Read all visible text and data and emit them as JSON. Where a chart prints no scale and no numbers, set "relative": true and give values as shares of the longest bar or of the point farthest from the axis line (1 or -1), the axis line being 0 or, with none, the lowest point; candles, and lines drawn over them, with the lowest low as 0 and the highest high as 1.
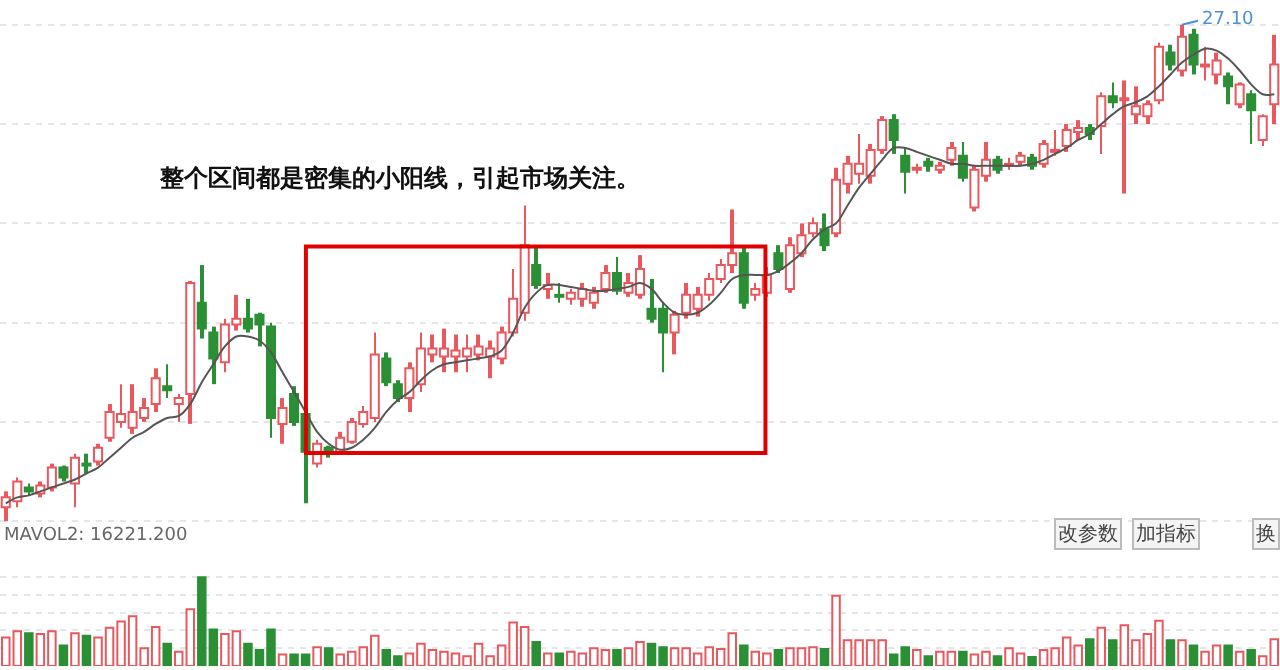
{
  "chart_data": [
    {
      "type": "candlestick",
      "relative": true,
      "grid": "y",
      "categories": [
        null,
        null,
        null,
        null,
        null,
        null,
        null,
        null,
        null,
        null,
        null,
        null,
        null,
        null,
        null,
        null,
        null,
        null,
        null,
        null,
        null,
        null,
        null,
        null,
        null,
        null,
        null,
        null,
        null,
        null,
        null,
        null,
        null,
        null,
        null,
        null,
        null,
        null,
        null,
        null,
        null,
        null,
        null,
        null,
        null,
        null,
        null,
        null,
        null,
        null,
        null,
        null,
        null,
        null,
        null,
        null,
        null,
        null,
        null,
        null,
        null,
        null,
        null,
        null,
        null,
        null,
        null,
        null,
        null,
        null,
        null,
        null,
        null,
        null,
        null,
        null,
        null,
        null,
        null,
        null,
        null,
        null,
        null,
        null,
        null,
        null,
        null,
        null,
        null,
        null,
        null,
        null,
        null,
        null,
        null,
        null,
        null,
        null,
        null,
        null,
        null,
        null,
        null,
        null,
        null,
        null,
        null,
        null,
        null,
        null,
        null
      ],
      "colors": [
        "#e8585e",
        "#e8585e",
        "#2a8f35",
        "#e8585e",
        "#e8585e",
        "#2a8f35",
        "#e8585e",
        "#2a8f35",
        "#e8585e",
        "#e8585e",
        "#e8585e",
        "#e8585e",
        "#e8585e",
        "#e8585e",
        "#2a8f35",
        "#e8585e",
        "#e8585e",
        "#2a8f35",
        "#2a8f35",
        "#e8585e",
        "#e8585e",
        "#2a8f35",
        "#2a8f35",
        "#2a8f35",
        "#e8585e",
        "#2a8f35",
        "#2a8f35",
        "#e8585e",
        "#2a8f35",
        "#e8585e",
        "#e8585e",
        "#e8585e",
        "#e8585e",
        "#2a8f35",
        "#2a8f35",
        "#e8585e",
        "#e8585e",
        "#e8585e",
        "#e8585e",
        "#e8585e",
        "#e8585e",
        "#e8585e",
        "#e8585e",
        "#e8585e",
        "#e8585e",
        "#e8585e",
        "#2a8f35",
        "#e8585e",
        "#2a8f35",
        "#e8585e",
        "#e8585e",
        "#e8585e",
        "#e8585e",
        "#2a8f35",
        "#e8585e",
        "#e8585e",
        "#2a8f35",
        "#2a8f35",
        "#e8585e",
        "#e8585e",
        "#e8585e",
        "#e8585e",
        "#e8585e",
        "#e8585e",
        "#2a8f35",
        "#e8585e",
        "#e8585e",
        "#2a8f35",
        "#e8585e",
        "#e8585e",
        "#e8585e",
        "#2a8f35",
        "#e8585e",
        "#e8585e",
        "#e8585e",
        "#e8585e",
        "#e8585e",
        "#2a8f35",
        "#2a8f35",
        "#e8585e",
        "#2a8f35",
        "#e8585e",
        "#e8585e",
        "#2a8f35",
        "#e8585e",
        "#e8585e",
        "#2a8f35",
        "#e8585e",
        "#e8585e",
        "#2a8f35",
        "#e8585e",
        "#e8585e",
        "#e8585e",
        "#e8585e",
        "#2a8f35",
        "#e8585e",
        "#2a8f35",
        "#e8585e",
        "#e8585e",
        "#e8585e",
        "#e8585e",
        "#2a8f35",
        "#e8585e",
        "#2a8f35",
        "#e8585e",
        "#e8585e",
        "#2a8f35",
        "#e8585e",
        "#2a8f35",
        "#e8585e",
        "#e8585e"
      ],
      "ohlc": [
        [
          0.028,
          0.06,
          0,
          0.048
        ],
        [
          0.04,
          0.088,
          0.028,
          0.08
        ],
        [
          0.068,
          0.076,
          0.052,
          0.06
        ],
        [
          0.056,
          0.08,
          0.048,
          0.072
        ],
        [
          0.068,
          0.116,
          0.06,
          0.108
        ],
        [
          0.108,
          0.112,
          0.08,
          0.088
        ],
        [
          0.076,
          0.136,
          0.028,
          0.128
        ],
        [
          0.116,
          0.136,
          0.096,
          0.112
        ],
        [
          0.12,
          0.156,
          0.112,
          0.148
        ],
        [
          0.168,
          0.236,
          0.16,
          0.22
        ],
        [
          0.2,
          0.276,
          0.188,
          0.216
        ],
        [
          0.188,
          0.276,
          0.176,
          0.22
        ],
        [
          0.208,
          0.248,
          0.2,
          0.228
        ],
        [
          0.236,
          0.308,
          0.22,
          0.288
        ],
        [
          0.272,
          0.316,
          0.248,
          0.264
        ],
        [
          0.236,
          0.256,
          0.2,
          0.248
        ],
        [
          0.256,
          0.484,
          0.196,
          0.48
        ],
        [
          0.44,
          0.516,
          0.368,
          0.388
        ],
        [
          0.38,
          0.392,
          0.276,
          0.328
        ],
        [
          0.32,
          0.408,
          0.3,
          0.396
        ],
        [
          0.396,
          0.456,
          0.384,
          0.408
        ],
        [
          0.408,
          0.448,
          0.38,
          0.388
        ],
        [
          0.416,
          0.42,
          0.352,
          0.396
        ],
        [
          0.392,
          0.4,
          0.168,
          0.208
        ],
        [
          0.196,
          0.248,
          0.156,
          0.228
        ],
        [
          0.256,
          0.272,
          0.192,
          0.2
        ],
        [
          0.216,
          0.228,
          0.036,
          0.14
        ],
        [
          0.116,
          0.164,
          0.108,
          0.156
        ],
        [
          0.148,
          0.152,
          0.128,
          0.136
        ],
        [
          0.14,
          0.18,
          0.136,
          0.168
        ],
        [
          0.16,
          0.208,
          0.156,
          0.2
        ],
        [
          0.196,
          0.232,
          0.188,
          0.22
        ],
        [
          0.208,
          0.38,
          0.2,
          0.336
        ],
        [
          0.328,
          0.34,
          0.272,
          0.28
        ],
        [
          0.276,
          0.284,
          0.24,
          0.248
        ],
        [
          0.248,
          0.32,
          0.22,
          0.308
        ],
        [
          0.276,
          0.38,
          0.26,
          0.348
        ],
        [
          0.336,
          0.376,
          0.32,
          0.348
        ],
        [
          0.332,
          0.388,
          0.3,
          0.348
        ],
        [
          0.332,
          0.376,
          0.3,
          0.344
        ],
        [
          0.332,
          0.376,
          0.3,
          0.348
        ],
        [
          0.336,
          0.376,
          0.324,
          0.352
        ],
        [
          0.332,
          0.364,
          0.288,
          0.348
        ],
        [
          0.328,
          0.392,
          0.316,
          0.38
        ],
        [
          0.38,
          0.508,
          0.372,
          0.448
        ],
        [
          0.42,
          0.636,
          0.404,
          0.556
        ],
        [
          0.516,
          0.552,
          0.468,
          0.476
        ],
        [
          0.468,
          0.5,
          0.448,
          0.476
        ],
        [
          0.456,
          0.48,
          0.44,
          0.452
        ],
        [
          0.448,
          0.468,
          0.436,
          0.46
        ],
        [
          0.448,
          0.48,
          0.432,
          0.468
        ],
        [
          0.44,
          0.472,
          0.428,
          0.46
        ],
        [
          0.468,
          0.516,
          0.46,
          0.5
        ],
        [
          0.5,
          0.532,
          0.456,
          0.464
        ],
        [
          0.46,
          0.5,
          0.452,
          0.48
        ],
        [
          0.456,
          0.536,
          0.448,
          0.508
        ],
        [
          0.428,
          0.488,
          0.4,
          0.408
        ],
        [
          0.428,
          0.44,
          0.3,
          0.38
        ],
        [
          0.38,
          0.424,
          0.336,
          0.416
        ],
        [
          0.42,
          0.48,
          0.408,
          0.456
        ],
        [
          0.428,
          0.472,
          0.412,
          0.456
        ],
        [
          0.456,
          0.5,
          0.444,
          0.488
        ],
        [
          0.488,
          0.528,
          0.48,
          0.516
        ],
        [
          0.516,
          0.628,
          0.5,
          0.54
        ],
        [
          0.54,
          0.556,
          0.428,
          0.44
        ],
        [
          0.456,
          0.48,
          0.444,
          0.468
        ],
        [
          0.46,
          0.512,
          0.452,
          0.496
        ],
        [
          0.54,
          0.556,
          0.5,
          0.508
        ],
        [
          0.468,
          0.572,
          0.46,
          0.556
        ],
        [
          0.54,
          0.6,
          0.532,
          0.576
        ],
        [
          0.58,
          0.612,
          0.572,
          0.6
        ],
        [
          0.588,
          0.62,
          0.544,
          0.556
        ],
        [
          0.58,
          0.712,
          0.572,
          0.688
        ],
        [
          0.68,
          0.736,
          0.66,
          0.72
        ],
        [
          0.7,
          0.78,
          0.68,
          0.72
        ],
        [
          0.696,
          0.76,
          0.68,
          0.748
        ],
        [
          0.748,
          0.816,
          0.74,
          0.808
        ],
        [
          0.808,
          0.82,
          0.74,
          0.768
        ],
        [
          0.736,
          0.752,
          0.66,
          0.704
        ],
        [
          0.708,
          0.72,
          0.7,
          0.712
        ],
        [
          0.724,
          0.732,
          0.704,
          0.716
        ],
        [
          0.708,
          0.724,
          0.7,
          0.716
        ],
        [
          0.728,
          0.764,
          0.716,
          0.752
        ],
        [
          0.736,
          0.764,
          0.684,
          0.692
        ],
        [
          0.632,
          0.716,
          0.624,
          0.708
        ],
        [
          0.696,
          0.764,
          0.684,
          0.728
        ],
        [
          0.728,
          0.736,
          0.7,
          0.708
        ],
        [
          0.716,
          0.732,
          0.708,
          0.72
        ],
        [
          0.724,
          0.744,
          0.716,
          0.736
        ],
        [
          0.732,
          0.74,
          0.708,
          0.716
        ],
        [
          0.72,
          0.768,
          0.712,
          0.76
        ],
        [
          0.744,
          0.788,
          0.736,
          0.748
        ],
        [
          0.756,
          0.8,
          0.744,
          0.788
        ],
        [
          0.784,
          0.808,
          0.768,
          0.792
        ],
        [
          0.792,
          0.8,
          0.768,
          0.78
        ],
        [
          0.796,
          0.864,
          0.74,
          0.856
        ],
        [
          0.856,
          0.884,
          0.832,
          0.844
        ],
        [
          0.848,
          0.888,
          0.66,
          0.852
        ],
        [
          0.82,
          0.876,
          0.8,
          0.836
        ],
        [
          0.816,
          0.848,
          0.8,
          0.84
        ],
        [
          0.848,
          0.964,
          0.84,
          0.956
        ],
        [
          0.944,
          0.96,
          0.908,
          0.92
        ],
        [
          0.908,
          1,
          0.896,
          0.976
        ],
        [
          0.98,
          0.992,
          0.9,
          0.92
        ],
        [
          0.916,
          0.956,
          0.888,
          0.92
        ],
        [
          0.9,
          0.944,
          0.88,
          0.928
        ],
        [
          0.896,
          0.904,
          0.84,
          0.876
        ],
        [
          0.84,
          0.884,
          0.832,
          0.88
        ],
        [
          0.86,
          0.868,
          0.76,
          0.828
        ],
        [
          0.768,
          0.82,
          0.756,
          0.816
        ],
        [
          0.84,
          0.98,
          0.8,
          0.92
        ]
      ],
      "series": [
        {
          "type": "line",
          "color": "#555555",
          "values": [
            0.036,
            0.048,
            0.052,
            0.06,
            0.068,
            0.076,
            0.084,
            0.096,
            0.108,
            0.128,
            0.148,
            0.168,
            0.18,
            0.196,
            0.208,
            0.212,
            0.236,
            0.28,
            0.316,
            0.352,
            0.372,
            0.372,
            0.364,
            0.34,
            0.3,
            0.26,
            0.22,
            0.18,
            0.156,
            0.144,
            0.148,
            0.164,
            0.188,
            0.22,
            0.244,
            0.26,
            0.284,
            0.304,
            0.316,
            0.32,
            0.324,
            0.328,
            0.332,
            0.344,
            0.38,
            0.43,
            0.46,
            0.476,
            0.476,
            0.472,
            0.468,
            0.464,
            0.464,
            0.468,
            0.472,
            0.48,
            0.468,
            0.44,
            0.42,
            0.416,
            0.42,
            0.436,
            0.46,
            0.488,
            0.496,
            0.496,
            0.496,
            0.504,
            0.52,
            0.54,
            0.568,
            0.588,
            0.6,
            0.636,
            0.672,
            0.7,
            0.728,
            0.752,
            0.752,
            0.744,
            0.736,
            0.728,
            0.72,
            0.72,
            0.716,
            0.716,
            0.716,
            0.716,
            0.716,
            0.72,
            0.728,
            0.74,
            0.752,
            0.768,
            0.78,
            0.8,
            0.82,
            0.836,
            0.844,
            0.856,
            0.876,
            0.9,
            0.924,
            0.94,
            0.952,
            0.948,
            0.932,
            0.908,
            0.88,
            0.86,
            0.86
          ]
        }
      ],
      "annotations": [
        "整个区间都是密集的小阳线，引起市场关注。",
        "27.10"
      ]
    },
    {
      "type": "bar",
      "relative": true,
      "grid": "y",
      "categories": [
        null,
        null,
        null,
        null,
        null,
        null,
        null,
        null,
        null,
        null,
        null,
        null,
        null,
        null,
        null,
        null,
        null,
        null,
        null,
        null,
        null,
        null,
        null,
        null,
        null,
        null,
        null,
        null,
        null,
        null,
        null,
        null,
        null,
        null,
        null,
        null,
        null,
        null,
        null,
        null,
        null,
        null,
        null,
        null,
        null,
        null,
        null,
        null,
        null,
        null,
        null,
        null,
        null,
        null,
        null,
        null,
        null,
        null,
        null,
        null,
        null,
        null,
        null,
        null,
        null,
        null,
        null,
        null,
        null,
        null,
        null,
        null,
        null,
        null,
        null,
        null,
        null,
        null,
        null,
        null,
        null,
        null,
        null,
        null,
        null,
        null,
        null,
        null,
        null,
        null,
        null,
        null,
        null,
        null,
        null,
        null,
        null,
        null,
        null,
        null,
        null,
        null,
        null,
        null,
        null,
        null,
        null,
        null,
        null,
        null,
        null
      ],
      "values": [
        0.32,
        0.39,
        0.37,
        0.36,
        0.39,
        0.23,
        0.37,
        0.34,
        0.32,
        0.43,
        0.5,
        0.56,
        0.2,
        0.44,
        0.25,
        0.16,
        0.64,
        1,
        0.41,
        0.36,
        0.39,
        0.25,
        0.18,
        0.41,
        0.13,
        0.13,
        0.13,
        0.21,
        0.2,
        0.13,
        0.16,
        0.21,
        0.34,
        0.18,
        0.11,
        0.14,
        0.25,
        0.18,
        0.16,
        0.14,
        0.11,
        0.25,
        0.11,
        0.23,
        0.49,
        0.44,
        0.27,
        0.14,
        0.14,
        0.16,
        0.14,
        0.2,
        0.18,
        0.18,
        0.2,
        0.27,
        0.25,
        0.21,
        0.2,
        0.2,
        0.14,
        0.21,
        0.19,
        0.37,
        0.23,
        0.16,
        0.14,
        0.18,
        0.2,
        0.2,
        0.21,
        0.19,
        0.79,
        0.29,
        0.29,
        0.29,
        0.29,
        0.13,
        0.21,
        0.18,
        0.11,
        0.16,
        0.16,
        0.16,
        0.13,
        0.16,
        0.11,
        0.2,
        0.14,
        0.1,
        0.18,
        0.2,
        0.32,
        0.23,
        0.3,
        0.43,
        0.29,
        0.46,
        0.29,
        0.36,
        0.51,
        0.29,
        0.29,
        0.23,
        0.16,
        0.23,
        0.23,
        0.16,
        0.18,
        0.11,
        0.3
      ],
      "colors": [
        "#e8585e",
        "#e8585e",
        "#2a8f35",
        "#e8585e",
        "#e8585e",
        "#2a8f35",
        "#e8585e",
        "#2a8f35",
        "#e8585e",
        "#e8585e",
        "#e8585e",
        "#e8585e",
        "#e8585e",
        "#e8585e",
        "#2a8f35",
        "#e8585e",
        "#e8585e",
        "#2a8f35",
        "#2a8f35",
        "#e8585e",
        "#e8585e",
        "#2a8f35",
        "#2a8f35",
        "#2a8f35",
        "#e8585e",
        "#2a8f35",
        "#2a8f35",
        "#e8585e",
        "#2a8f35",
        "#e8585e",
        "#e8585e",
        "#e8585e",
        "#e8585e",
        "#2a8f35",
        "#2a8f35",
        "#e8585e",
        "#e8585e",
        "#e8585e",
        "#e8585e",
        "#e8585e",
        "#e8585e",
        "#e8585e",
        "#e8585e",
        "#e8585e",
        "#e8585e",
        "#e8585e",
        "#2a8f35",
        "#e8585e",
        "#2a8f35",
        "#e8585e",
        "#e8585e",
        "#e8585e",
        "#e8585e",
        "#2a8f35",
        "#e8585e",
        "#e8585e",
        "#2a8f35",
        "#2a8f35",
        "#e8585e",
        "#e8585e",
        "#e8585e",
        "#e8585e",
        "#e8585e",
        "#e8585e",
        "#2a8f35",
        "#e8585e",
        "#e8585e",
        "#2a8f35",
        "#e8585e",
        "#e8585e",
        "#e8585e",
        "#2a8f35",
        "#e8585e",
        "#e8585e",
        "#e8585e",
        "#e8585e",
        "#e8585e",
        "#2a8f35",
        "#2a8f35",
        "#e8585e",
        "#2a8f35",
        "#e8585e",
        "#e8585e",
        "#2a8f35",
        "#e8585e",
        "#e8585e",
        "#2a8f35",
        "#e8585e",
        "#e8585e",
        "#2a8f35",
        "#e8585e",
        "#e8585e",
        "#e8585e",
        "#e8585e",
        "#2a8f35",
        "#e8585e",
        "#2a8f35",
        "#e8585e",
        "#e8585e",
        "#e8585e",
        "#e8585e",
        "#2a8f35",
        "#e8585e",
        "#2a8f35",
        "#e8585e",
        "#e8585e",
        "#2a8f35",
        "#e8585e",
        "#2a8f35",
        "#e8585e",
        "#e8585e"
      ],
      "annotations": [
        "MAVOL2: 16221.200",
        "改参数",
        "加指标",
        "换"
      ]
    }
  ]
}
